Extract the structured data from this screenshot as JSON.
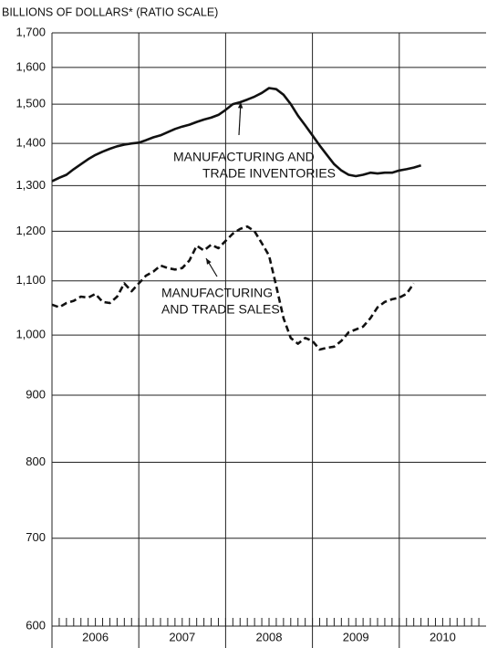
{
  "chart_data": {
    "type": "line",
    "y_label": "BILLIONS OF DOLLARS* (RATIO SCALE)",
    "log_scale": true,
    "grid": true,
    "ylim": [
      600,
      1700
    ],
    "yticks": [
      600,
      700,
      800,
      900,
      {
        "value": 1000,
        "label": "1,000"
      },
      {
        "value": 1100,
        "label": "1,100"
      },
      {
        "value": 1200,
        "label": "1,200"
      },
      {
        "value": 1300,
        "label": "1,300"
      },
      {
        "value": 1400,
        "label": "1,400"
      },
      {
        "value": 1500,
        "label": "1,500"
      },
      {
        "value": 1600,
        "label": "1,600"
      },
      {
        "value": 1700,
        "label": "1,700"
      }
    ],
    "xlim": [
      2006,
      2011
    ],
    "xticks": [
      2006,
      2007,
      2008,
      2009,
      2010
    ],
    "x": [
      2006.0,
      2006.083,
      2006.167,
      2006.25,
      2006.333,
      2006.417,
      2006.5,
      2006.583,
      2006.667,
      2006.75,
      2006.833,
      2006.917,
      2007.0,
      2007.083,
      2007.167,
      2007.25,
      2007.333,
      2007.417,
      2007.5,
      2007.583,
      2007.667,
      2007.75,
      2007.833,
      2007.917,
      2008.0,
      2008.083,
      2008.167,
      2008.25,
      2008.333,
      2008.417,
      2008.5,
      2008.583,
      2008.667,
      2008.75,
      2008.833,
      2008.917,
      2009.0,
      2009.083,
      2009.167,
      2009.25,
      2009.333,
      2009.417,
      2009.5,
      2009.583,
      2009.667,
      2009.75,
      2009.833,
      2009.917,
      2010.0,
      2010.083,
      2010.167,
      2010.25
    ],
    "series": [
      {
        "label": [
          "MANUFACTURING AND",
          "TRADE INVENTORIES"
        ],
        "color": "#111",
        "dash": false,
        "values": [
          1310,
          1318,
          1325,
          1338,
          1350,
          1362,
          1372,
          1380,
          1387,
          1393,
          1397,
          1400,
          1402,
          1408,
          1415,
          1420,
          1428,
          1436,
          1442,
          1447,
          1454,
          1460,
          1465,
          1472,
          1485,
          1500,
          1505,
          1512,
          1520,
          1530,
          1543,
          1540,
          1525,
          1500,
          1470,
          1445,
          1420,
          1395,
          1372,
          1350,
          1335,
          1325,
          1322,
          1325,
          1330,
          1328,
          1330,
          1330,
          1335,
          1338,
          1342,
          1347
        ]
      },
      {
        "label": [
          "MANUFACTURING",
          "AND TRADE SALES"
        ],
        "color": "#111",
        "dash": true,
        "values": [
          1055,
          1050,
          1058,
          1062,
          1070,
          1068,
          1075,
          1060,
          1058,
          1070,
          1095,
          1080,
          1095,
          1110,
          1118,
          1130,
          1125,
          1122,
          1125,
          1140,
          1170,
          1160,
          1172,
          1165,
          1180,
          1195,
          1205,
          1210,
          1200,
          1175,
          1150,
          1090,
          1030,
          995,
          985,
          995,
          990,
          975,
          978,
          980,
          990,
          1005,
          1010,
          1015,
          1030,
          1050,
          1060,
          1065,
          1068,
          1075,
          1095,
          null
        ]
      }
    ]
  }
}
